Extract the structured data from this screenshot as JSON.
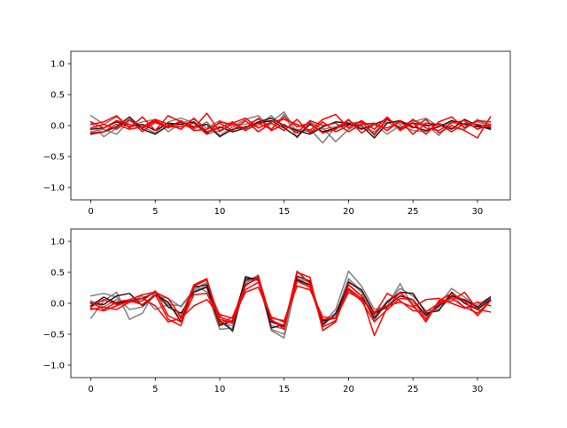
{
  "chart_data": [
    {
      "type": "line",
      "ylim": [
        -1.2,
        1.2
      ],
      "xlim": [
        -1.55,
        32.55
      ],
      "xticks": [
        0,
        5,
        10,
        15,
        20,
        25,
        30
      ],
      "yticks": [
        -1.0,
        -0.5,
        0.0,
        0.5,
        1.0
      ],
      "ytick_labels": [
        "−1.0",
        "−0.5",
        "0.0",
        "0.5",
        "1.0"
      ],
      "grid": false,
      "colors": {
        "gray": "#808080",
        "dark": "#3a0f0f",
        "red": "#ff0000"
      },
      "series": [
        {
          "color": "gray",
          "values": [
            0.16,
            0.02,
            0.14,
            -0.02,
            0.06,
            0.1,
            -0.1,
            0.04,
            0.1,
            -0.04,
            0.08,
            -0.02,
            0.1,
            0.16,
            -0.06,
            0.18,
            -0.2,
            0.06,
            -0.06,
            -0.02,
            0.04,
            0.06,
            -0.16,
            0.1,
            0.02,
            0.06,
            0.12,
            -0.02,
            0.06,
            -0.02,
            0.08,
            0.02
          ]
        },
        {
          "color": "gray",
          "values": [
            0.06,
            -0.18,
            -0.04,
            0.1,
            -0.02,
            -0.12,
            0.06,
            0.12,
            0.04,
            -0.14,
            -0.08,
            0.02,
            0.02,
            0.1,
            0.06,
            0.22,
            -0.12,
            -0.06,
            -0.28,
            -0.02,
            0.08,
            -0.04,
            -0.1,
            0.06,
            -0.06,
            0.08,
            0.02,
            -0.16,
            0.06,
            0.02,
            0.06,
            0.0
          ]
        },
        {
          "color": "gray",
          "values": [
            -0.1,
            -0.06,
            -0.14,
            0.08,
            -0.04,
            0.04,
            -0.02,
            0.02,
            -0.06,
            0.06,
            -0.16,
            -0.02,
            -0.06,
            0.0,
            0.16,
            -0.02,
            -0.06,
            -0.1,
            -0.04,
            -0.26,
            -0.06,
            0.04,
            0.02,
            -0.14,
            0.0,
            -0.08,
            -0.1,
            0.04,
            -0.04,
            -0.06,
            0.1,
            -0.02
          ]
        },
        {
          "color": "dark",
          "values": [
            -0.14,
            -0.1,
            -0.02,
            0.14,
            -0.06,
            -0.14,
            0.0,
            0.06,
            -0.02,
            0.02,
            -0.18,
            -0.06,
            -0.02,
            0.04,
            0.08,
            -0.04,
            -0.18,
            0.02,
            -0.1,
            -0.04,
            0.02,
            0.0,
            -0.2,
            0.04,
            0.08,
            -0.02,
            -0.08,
            -0.02,
            0.08,
            0.02,
            -0.02,
            -0.04
          ]
        },
        {
          "color": "dark",
          "values": [
            -0.06,
            -0.04,
            0.06,
            -0.02,
            0.02,
            -0.08,
            0.04,
            0.02,
            0.06,
            -0.12,
            -0.02,
            -0.1,
            -0.04,
            0.06,
            0.12,
            0.0,
            -0.08,
            -0.14,
            -0.02,
            0.06,
            0.04,
            -0.06,
            0.02,
            0.1,
            -0.04,
            0.04,
            0.0,
            0.02,
            -0.06,
            0.1,
            0.0,
            -0.06
          ]
        },
        {
          "color": "red",
          "values": [
            0.02,
            0.06,
            0.16,
            -0.04,
            0.14,
            -0.08,
            0.16,
            0.06,
            -0.04,
            0.2,
            -0.1,
            0.04,
            0.12,
            -0.04,
            0.06,
            0.1,
            0.02,
            -0.08,
            0.1,
            0.18,
            -0.04,
            0.08,
            -0.06,
            0.14,
            -0.08,
            0.04,
            -0.14,
            0.06,
            0.14,
            -0.04,
            0.08,
            0.06
          ]
        },
        {
          "color": "red",
          "values": [
            -0.12,
            -0.1,
            0.02,
            -0.06,
            -0.02,
            0.1,
            0.02,
            -0.06,
            0.12,
            -0.1,
            -0.04,
            0.06,
            -0.08,
            0.04,
            -0.06,
            0.14,
            -0.02,
            0.04,
            -0.12,
            -0.06,
            0.1,
            -0.12,
            0.02,
            -0.04,
            0.06,
            -0.04,
            0.1,
            -0.12,
            0.0,
            -0.08,
            -0.2,
            0.14
          ]
        },
        {
          "color": "red",
          "values": [
            -0.04,
            0.02,
            -0.06,
            0.1,
            -0.1,
            0.06,
            -0.04,
            0.08,
            -0.08,
            -0.06,
            0.04,
            -0.08,
            0.08,
            -0.1,
            0.04,
            -0.08,
            0.1,
            -0.12,
            0.06,
            -0.1,
            0.0,
            0.06,
            -0.14,
            0.12,
            -0.06,
            0.1,
            -0.04,
            -0.08,
            0.04,
            0.08,
            -0.06,
            0.02
          ]
        },
        {
          "color": "red",
          "values": [
            0.06,
            -0.04,
            0.08,
            0.02,
            -0.04,
            0.08,
            -0.02,
            -0.02,
            0.04,
            -0.14,
            0.06,
            0.02,
            -0.04,
            0.12,
            -0.08,
            0.02,
            -0.12,
            0.08,
            0.0,
            0.04,
            -0.1,
            0.02,
            0.04,
            -0.08,
            0.08,
            -0.14,
            0.04,
            0.02,
            -0.1,
            0.04,
            0.02,
            -0.02
          ]
        }
      ]
    },
    {
      "type": "line",
      "ylim": [
        -1.2,
        1.2
      ],
      "xlim": [
        -1.55,
        32.55
      ],
      "xticks": [
        0,
        5,
        10,
        15,
        20,
        25,
        30
      ],
      "yticks": [
        -1.0,
        -0.5,
        0.0,
        0.5,
        1.0
      ],
      "ytick_labels": [
        "−1.0",
        "−0.5",
        "0.0",
        "0.5",
        "1.0"
      ],
      "grid": false,
      "colors": {
        "gray": "#808080",
        "dark": "#3a0f0f",
        "red": "#ff0000"
      },
      "series": [
        {
          "color": "gray",
          "values": [
            0.12,
            0.16,
            0.1,
            -0.1,
            -0.06,
            0.12,
            0.08,
            -0.06,
            0.2,
            0.28,
            -0.18,
            -0.46,
            0.32,
            0.46,
            -0.44,
            -0.56,
            0.36,
            0.3,
            -0.32,
            -0.1,
            0.52,
            0.28,
            -0.1,
            -0.04,
            0.32,
            -0.06,
            -0.24,
            -0.02,
            0.24,
            0.1,
            -0.06,
            0.04
          ]
        },
        {
          "color": "gray",
          "values": [
            -0.24,
            0.04,
            0.18,
            -0.26,
            -0.16,
            0.2,
            -0.02,
            -0.24,
            0.3,
            0.18,
            -0.42,
            -0.4,
            0.44,
            0.36,
            -0.42,
            -0.5,
            0.42,
            0.26,
            -0.36,
            -0.18,
            0.4,
            0.2,
            -0.22,
            0.04,
            0.16,
            0.02,
            -0.18,
            -0.06,
            0.16,
            -0.08,
            -0.02,
            0.1
          ]
        },
        {
          "color": "gray",
          "values": [
            0.04,
            -0.06,
            0.06,
            0.02,
            0.12,
            -0.1,
            -0.02,
            -0.04,
            0.22,
            0.34,
            -0.32,
            -0.36,
            0.36,
            0.4,
            -0.36,
            -0.42,
            0.4,
            0.34,
            -0.3,
            -0.2,
            0.36,
            0.18,
            -0.28,
            0.02,
            0.24,
            0.12,
            -0.12,
            -0.1,
            0.1,
            0.04,
            -0.08,
            0.08
          ]
        },
        {
          "color": "dark",
          "values": [
            0.0,
            -0.02,
            0.12,
            0.16,
            -0.04,
            0.14,
            0.02,
            -0.3,
            0.26,
            0.3,
            -0.28,
            -0.44,
            0.42,
            0.38,
            -0.3,
            -0.38,
            0.44,
            0.36,
            -0.34,
            -0.16,
            0.3,
            0.12,
            -0.24,
            0.02,
            0.18,
            0.16,
            -0.16,
            -0.12,
            0.18,
            0.0,
            -0.1,
            0.06
          ]
        },
        {
          "color": "dark",
          "values": [
            -0.04,
            0.1,
            0.0,
            0.04,
            0.08,
            0.18,
            -0.06,
            -0.16,
            0.18,
            0.26,
            -0.36,
            -0.28,
            0.38,
            0.42,
            -0.4,
            -0.34,
            0.38,
            0.3,
            -0.28,
            -0.24,
            0.34,
            0.22,
            -0.16,
            -0.06,
            0.12,
            0.06,
            -0.2,
            -0.04,
            0.12,
            0.06,
            -0.06,
            0.1
          ]
        },
        {
          "color": "red",
          "values": [
            0.02,
            -0.1,
            0.02,
            0.06,
            0.14,
            0.18,
            0.08,
            -0.22,
            0.3,
            0.4,
            -0.34,
            -0.22,
            0.28,
            0.44,
            -0.28,
            -0.36,
            0.5,
            0.42,
            -0.44,
            -0.3,
            0.3,
            0.12,
            -0.52,
            -0.06,
            0.18,
            -0.02,
            -0.3,
            0.04,
            0.16,
            0.04,
            -0.2,
            0.04
          ]
        },
        {
          "color": "red",
          "values": [
            -0.08,
            -0.12,
            -0.04,
            0.04,
            -0.02,
            0.14,
            -0.26,
            -0.36,
            0.28,
            0.38,
            -0.26,
            -0.32,
            0.3,
            0.4,
            -0.26,
            -0.42,
            0.52,
            0.32,
            -0.38,
            -0.28,
            0.24,
            0.08,
            -0.18,
            0.16,
            0.04,
            -0.12,
            -0.14,
            0.0,
            0.04,
            0.18,
            -0.1,
            -0.14
          ]
        },
        {
          "color": "red",
          "values": [
            -0.06,
            0.06,
            -0.02,
            0.02,
            0.04,
            0.2,
            -0.2,
            -0.3,
            0.14,
            0.16,
            -0.22,
            -0.3,
            0.22,
            0.34,
            -0.22,
            -0.3,
            0.36,
            0.26,
            -0.26,
            -0.24,
            0.22,
            0.04,
            -0.3,
            -0.1,
            0.08,
            0.06,
            -0.26,
            0.02,
            0.08,
            -0.06,
            -0.16,
            0.04
          ]
        },
        {
          "color": "red",
          "values": [
            -0.1,
            -0.06,
            -0.1,
            0.02,
            0.08,
            -0.04,
            -0.3,
            -0.24,
            -0.04,
            0.06,
            -0.18,
            -0.24,
            0.18,
            0.26,
            -0.24,
            -0.28,
            0.28,
            0.22,
            -0.22,
            -0.24,
            0.18,
            0.06,
            -0.14,
            -0.04,
            0.02,
            -0.06,
            0.06,
            0.08,
            0.0,
            -0.08,
            0.02,
            -0.04
          ]
        }
      ]
    }
  ]
}
